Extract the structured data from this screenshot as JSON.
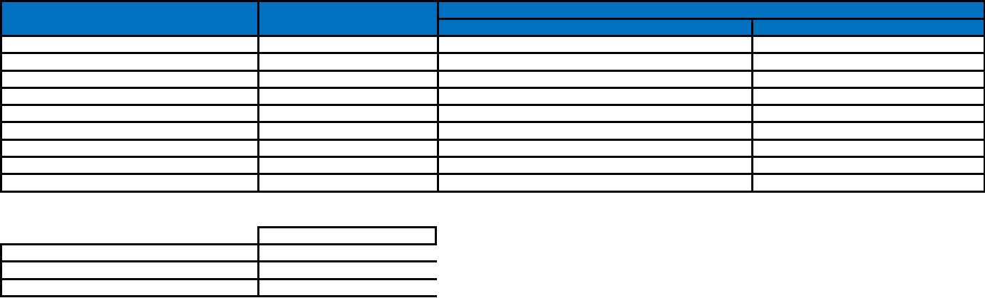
{
  "colors": {
    "header_fill": "#0070C0",
    "grid_lines": "#000000",
    "cell_fill": "#FFFFFF"
  },
  "main_table": {
    "header": {
      "col1": "",
      "col2": "",
      "group": "",
      "sub1": "",
      "sub2": ""
    },
    "rows": [
      [
        "",
        "",
        "",
        ""
      ],
      [
        "",
        "",
        "",
        ""
      ],
      [
        "",
        "",
        "",
        ""
      ],
      [
        "",
        "",
        "",
        ""
      ],
      [
        "",
        "",
        "",
        ""
      ],
      [
        "",
        "",
        "",
        ""
      ],
      [
        "",
        "",
        "",
        ""
      ],
      [
        "",
        "",
        "",
        ""
      ],
      [
        "",
        "",
        "",
        ""
      ]
    ]
  },
  "second_table": {
    "header": "",
    "rows": [
      [
        "",
        ""
      ],
      [
        "",
        ""
      ],
      [
        "",
        ""
      ]
    ]
  }
}
